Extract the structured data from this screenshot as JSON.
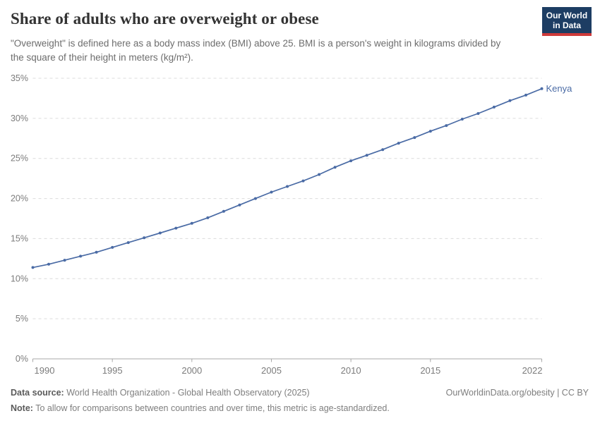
{
  "header": {
    "title": "Share of adults who are overweight or obese",
    "subtitle": "\"Overweight\" is defined here as a body mass index (BMI) above 25. BMI is a person's weight in kilograms divided by the square of their height in meters (kg/m²)."
  },
  "logo": {
    "line1": "Our World",
    "line2": "in Data",
    "bg_color": "#1d3d63",
    "accent_color": "#cf3a3a"
  },
  "chart_data": {
    "type": "line",
    "title": "Share of adults who are overweight or obese",
    "x": [
      1990,
      1991,
      1992,
      1993,
      1994,
      1995,
      1996,
      1997,
      1998,
      1999,
      2000,
      2001,
      2002,
      2003,
      2004,
      2005,
      2006,
      2007,
      2008,
      2009,
      2010,
      2011,
      2012,
      2013,
      2014,
      2015,
      2016,
      2017,
      2018,
      2019,
      2020,
      2021,
      2022
    ],
    "series": [
      {
        "name": "Kenya",
        "color": "#4a6ba5",
        "values": [
          11.4,
          11.8,
          12.3,
          12.8,
          13.3,
          13.9,
          14.5,
          15.1,
          15.7,
          16.3,
          16.9,
          17.6,
          18.4,
          19.2,
          20.0,
          20.8,
          21.5,
          22.2,
          23.0,
          23.9,
          24.7,
          25.4,
          26.1,
          26.9,
          27.6,
          28.4,
          29.1,
          29.9,
          30.6,
          31.4,
          32.2,
          32.9,
          33.7
        ]
      }
    ],
    "end_label": "Kenya",
    "xlim": [
      1990,
      2022
    ],
    "ylim": [
      0,
      35
    ],
    "x_ticks": [
      1990,
      1995,
      2000,
      2005,
      2010,
      2015,
      2022
    ],
    "y_ticks": [
      0,
      5,
      10,
      15,
      20,
      25,
      30,
      35
    ],
    "y_tick_suffix": "%",
    "grid": "horizontal-dashed",
    "grid_color": "#dcdcdc",
    "axis_color": "#a8a8a8",
    "tick_label_color": "#7c7c7c",
    "legend_position": "end-of-line"
  },
  "footer": {
    "source_label": "Data source:",
    "source_text": "World Health Organization - Global Health Observatory (2025)",
    "rights": "OurWorldinData.org/obesity | CC BY",
    "note_label": "Note:",
    "note_text": "To allow for comparisons between countries and over time, this metric is age-standardized."
  }
}
